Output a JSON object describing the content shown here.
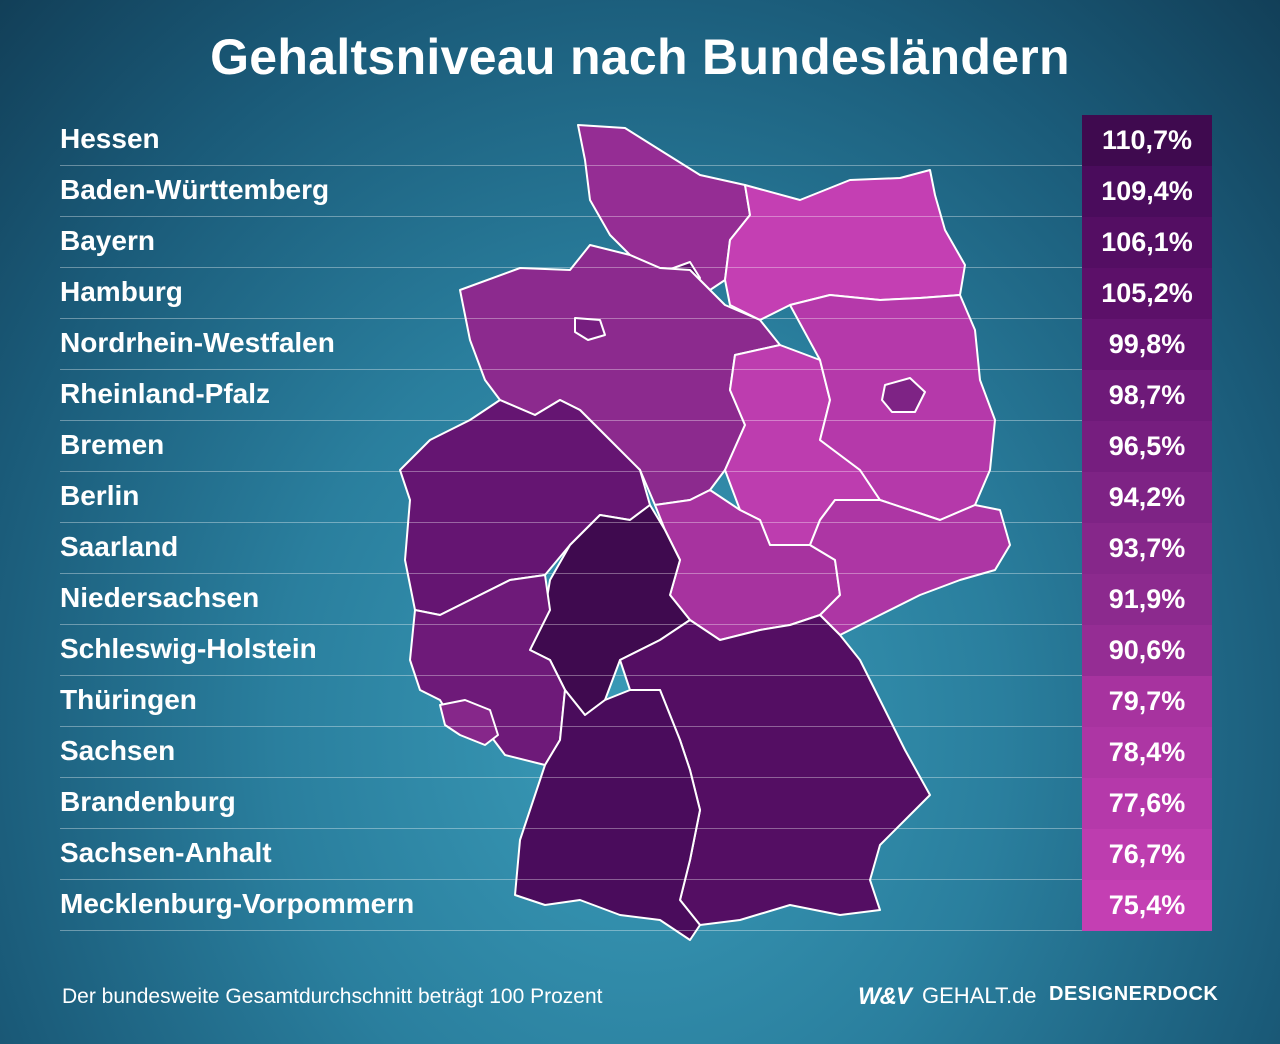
{
  "title": "Gehaltsniveau nach Bundesländern",
  "footnote": "Der bundesweite Gesamtdurchschnitt beträgt 100 Prozent",
  "logos": {
    "wv": "W&V",
    "gehalt": "GEHALT.de",
    "designerdock": "DESIGNERDOCK"
  },
  "states": [
    {
      "name": "Hessen",
      "value": "110,7%",
      "color": "#3f0a4f"
    },
    {
      "name": "Baden-Württemberg",
      "value": "109,4%",
      "color": "#4a0c5c"
    },
    {
      "name": "Bayern",
      "value": "106,1%",
      "color": "#540e63"
    },
    {
      "name": "Hamburg",
      "value": "105,2%",
      "color": "#5c1069"
    },
    {
      "name": "Nordrhein-Westfalen",
      "value": "99,8%",
      "color": "#651572"
    },
    {
      "name": "Rheinland-Pfalz",
      "value": "98,7%",
      "color": "#6e1a79"
    },
    {
      "name": "Bremen",
      "value": "96,5%",
      "color": "#761e7f"
    },
    {
      "name": "Berlin",
      "value": "94,2%",
      "color": "#7e2385"
    },
    {
      "name": "Saarland",
      "value": "93,7%",
      "color": "#86278a"
    },
    {
      "name": "Niedersachsen",
      "value": "91,9%",
      "color": "#8c2a8e"
    },
    {
      "name": "Schleswig-Holstein",
      "value": "90,6%",
      "color": "#952d94"
    },
    {
      "name": "Thüringen",
      "value": "79,7%",
      "color": "#a7339f"
    },
    {
      "name": "Sachsen",
      "value": "78,4%",
      "color": "#ad36a4"
    },
    {
      "name": "Brandenburg",
      "value": "77,6%",
      "color": "#b539aa"
    },
    {
      "name": "Sachsen-Anhalt",
      "value": "76,7%",
      "color": "#bd3daf"
    },
    {
      "name": "Mecklenburg-Vorpommern",
      "value": "75,4%",
      "color": "#c43fb3"
    }
  ]
}
